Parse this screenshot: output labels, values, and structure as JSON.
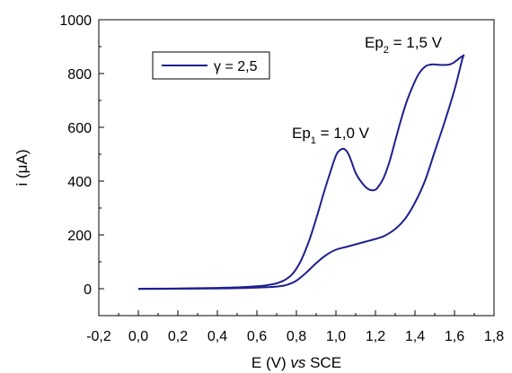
{
  "chart_data": {
    "type": "line",
    "xlabel_prefix": "E (V) ",
    "xlabel_italic": "vs",
    "xlabel_suffix": " SCE",
    "ylabel_prefix": "i (",
    "ylabel_symbol": "μ",
    "ylabel_suffix": "A)",
    "xlim": [
      -0.2,
      1.8
    ],
    "ylim": [
      -100,
      1000
    ],
    "x_ticks": [
      -0.2,
      0.0,
      0.2,
      0.4,
      0.6,
      0.8,
      1.0,
      1.2,
      1.4,
      1.6,
      1.8
    ],
    "x_tick_labels": [
      "-0,2",
      "0,0",
      "0,2",
      "0,4",
      "0,6",
      "0,8",
      "1,0",
      "1,2",
      "1,4",
      "1,6",
      "1,8"
    ],
    "y_ticks": [
      0,
      200,
      400,
      600,
      800,
      1000
    ],
    "y_tick_labels": [
      "0",
      "200",
      "400",
      "600",
      "800",
      "1000"
    ],
    "grid": false,
    "legend_position": "top-left",
    "series": [
      {
        "name": "γ = 2,5",
        "color": "#1f1f8f",
        "x": [
          0.0,
          0.2,
          0.4,
          0.5,
          0.6,
          0.65,
          0.7,
          0.74,
          0.78,
          0.82,
          0.86,
          0.9,
          0.94,
          0.97,
          1.0,
          1.02,
          1.04,
          1.06,
          1.08,
          1.1,
          1.13,
          1.16,
          1.19,
          1.21,
          1.24,
          1.27,
          1.3,
          1.33,
          1.36,
          1.39,
          1.42,
          1.45,
          1.47,
          1.49,
          1.51,
          1.53,
          1.55,
          1.57,
          1.59,
          1.61,
          1.63,
          1.645,
          1.64,
          1.6,
          1.55,
          1.5,
          1.45,
          1.4,
          1.35,
          1.3,
          1.25,
          1.2,
          1.15,
          1.1,
          1.05,
          1.0,
          0.95,
          0.9,
          0.85,
          0.8,
          0.75,
          0.7,
          0.6,
          0.5,
          0.4,
          0.2,
          0.0
        ],
        "y": [
          0,
          1,
          3,
          5,
          9,
          13,
          20,
          32,
          55,
          100,
          170,
          260,
          360,
          430,
          495,
          515,
          520,
          505,
          470,
          430,
          395,
          372,
          366,
          375,
          410,
          470,
          550,
          630,
          700,
          755,
          800,
          825,
          832,
          834,
          833,
          832,
          832,
          833,
          838,
          848,
          860,
          865,
          855,
          740,
          620,
          510,
          400,
          320,
          260,
          222,
          198,
          185,
          175,
          165,
          155,
          145,
          125,
          95,
          60,
          30,
          14,
          8,
          4,
          2,
          1,
          0,
          -1
        ]
      }
    ],
    "annotations": [
      {
        "base": "Ep",
        "sub": "1",
        "rest": " = 1,0 V"
      },
      {
        "base": "Ep",
        "sub": "2",
        "rest": " = 1,5 V"
      }
    ]
  }
}
